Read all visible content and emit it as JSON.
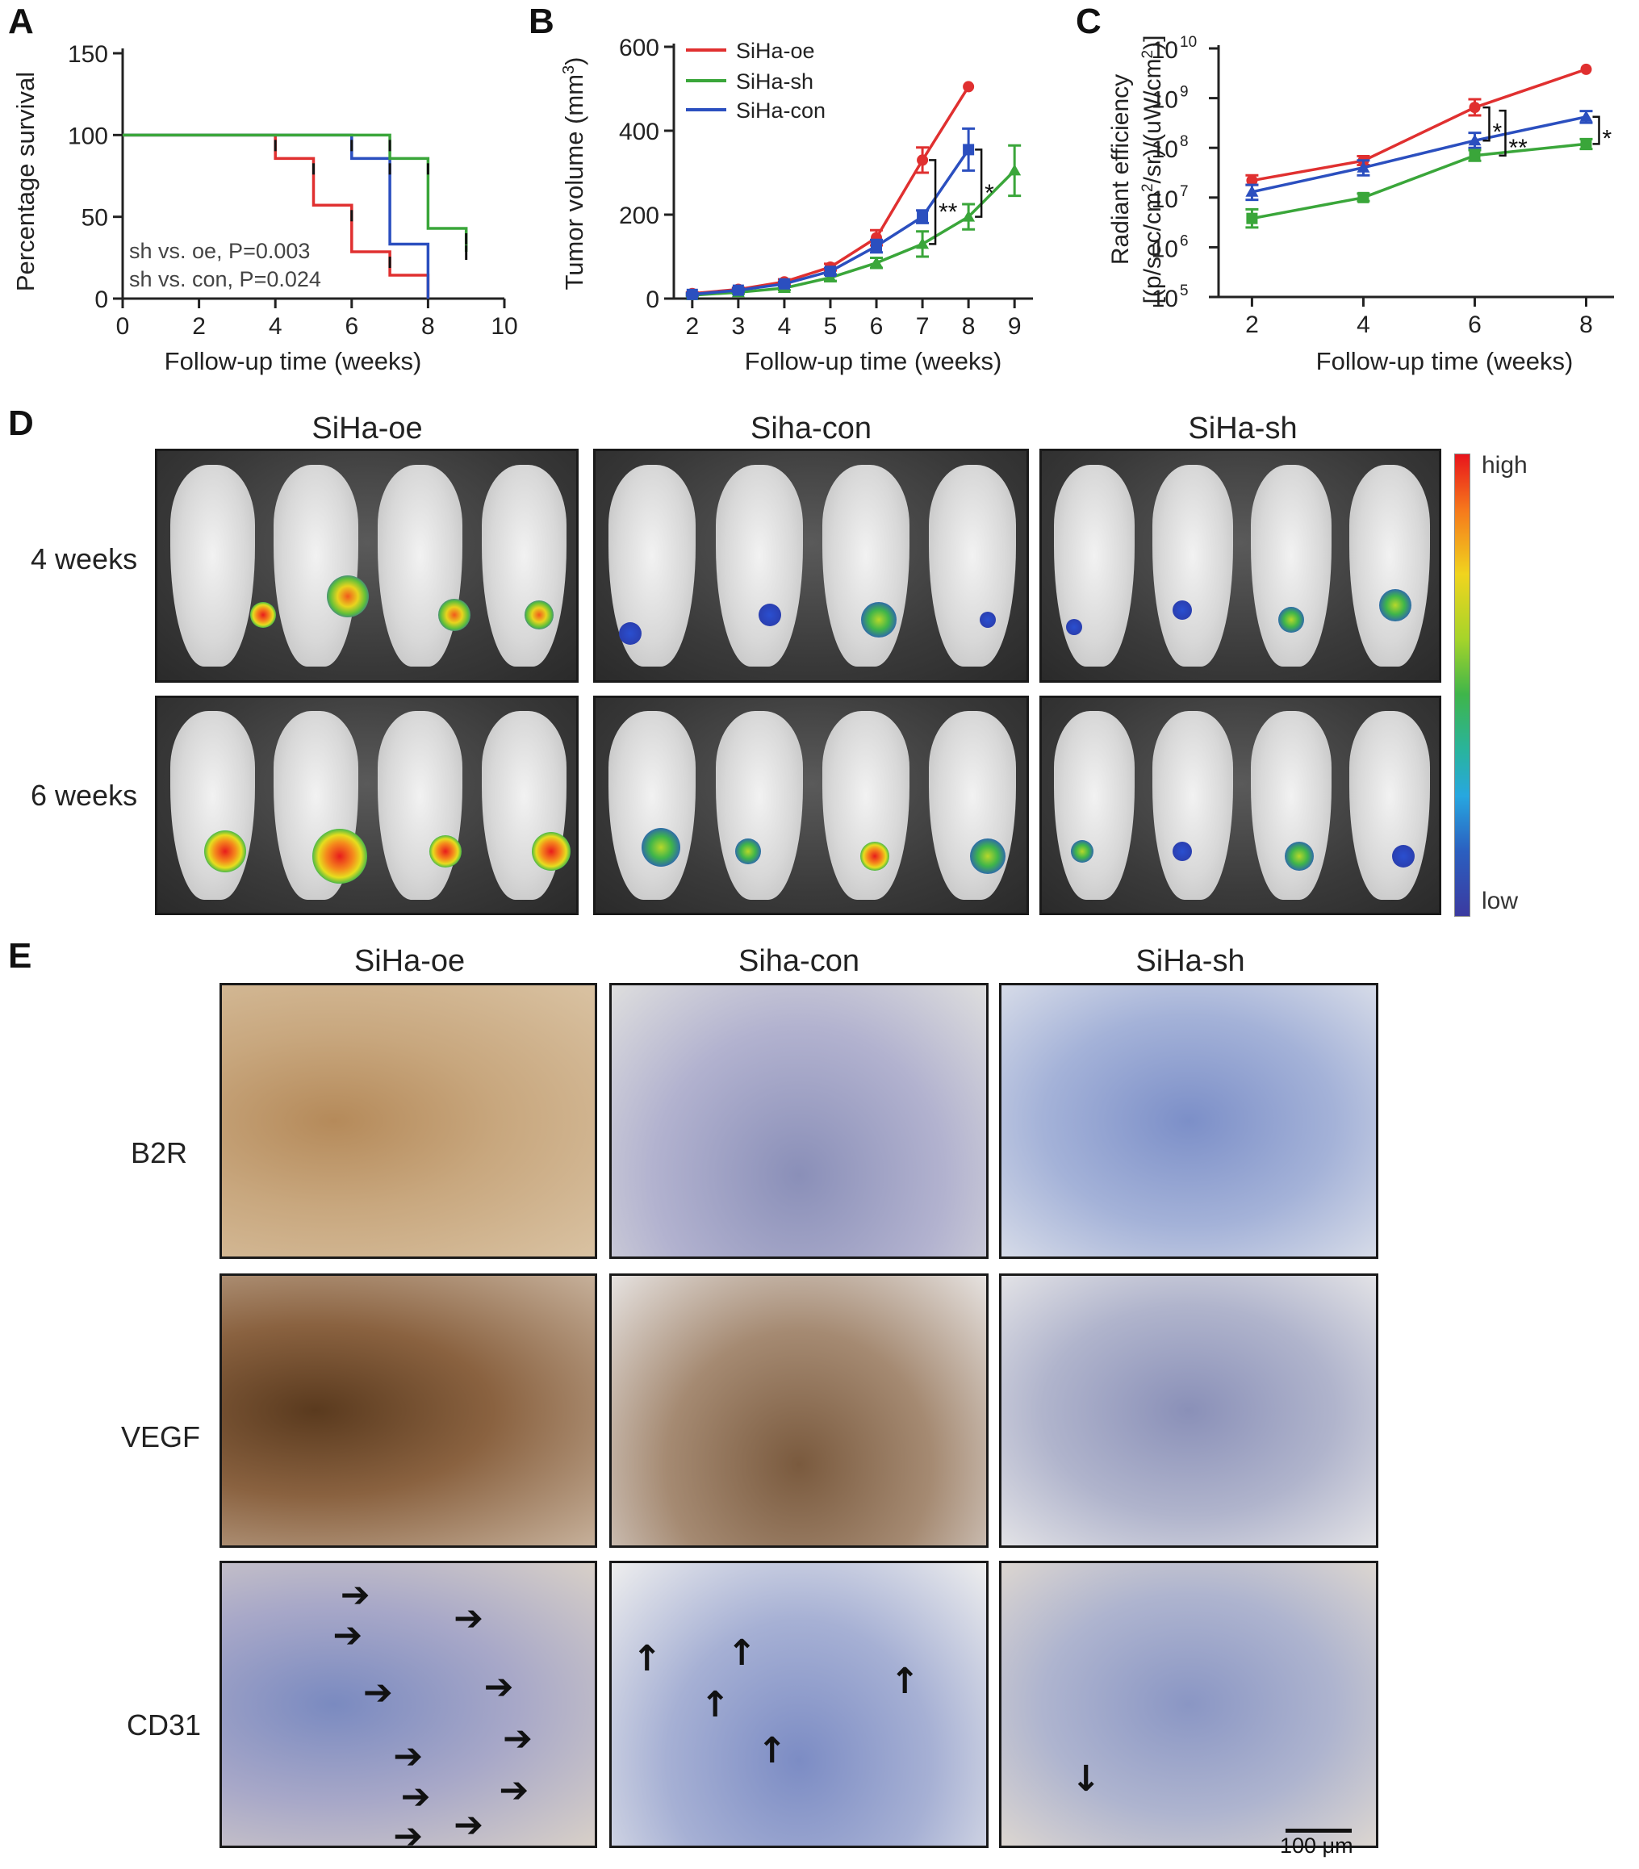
{
  "panels": {
    "A": "A",
    "B": "B",
    "C": "C",
    "D": "D",
    "E": "E"
  },
  "chart_data": [
    {
      "panel": "A",
      "type": "line",
      "title": "",
      "xlabel": "Follow-up time (weeks)",
      "ylabel": "Percentage survival",
      "xlim": [
        0,
        10
      ],
      "ylim": [
        0,
        150
      ],
      "x_ticks": [
        "0",
        "2",
        "4",
        "6",
        "8",
        "10"
      ],
      "y_ticks": [
        "0",
        "50",
        "100",
        "150"
      ],
      "series": [
        {
          "color": "#e03030",
          "x": [
            0,
            4,
            5,
            6,
            7,
            8
          ],
          "y": [
            100,
            85.7,
            57.1,
            28.6,
            14.3,
            0
          ]
        },
        {
          "color": "#2b4fbf",
          "x": [
            0,
            6,
            7,
            8
          ],
          "y": [
            100,
            85.7,
            33.3,
            0
          ]
        },
        {
          "color": "#3aa63a",
          "x": [
            0,
            7,
            8,
            9
          ],
          "y": [
            100,
            85.7,
            42.9,
            28.6
          ]
        }
      ],
      "annotations": [
        "sh vs. oe, P=0.003",
        "sh vs. con, P=0.024"
      ]
    },
    {
      "panel": "B",
      "type": "line",
      "title": "",
      "xlabel": "Follow-up time (weeks)",
      "ylabel": "Tumor  volume (mm3)",
      "ylabel_main": "Tumor  volume (mm",
      "ylabel_sup": "3",
      "ylabel_end": ")",
      "xlim": [
        1.6,
        9.4
      ],
      "ylim": [
        0,
        600
      ],
      "x_ticks": [
        "2",
        "3",
        "4",
        "5",
        "6",
        "7",
        "8",
        "9"
      ],
      "y_ticks": [
        "0",
        "200",
        "400",
        "600"
      ],
      "legend": [
        "SiHa-oe",
        "SiHa-sh",
        "SiHa-con"
      ],
      "series": [
        {
          "name": "SiHa-oe",
          "color": "#e03030",
          "x": [
            2,
            3,
            4,
            5,
            6,
            7,
            8
          ],
          "y": [
            12,
            22,
            40,
            75,
            145,
            330,
            505
          ],
          "err": [
            3,
            4,
            6,
            8,
            18,
            30,
            0
          ]
        },
        {
          "name": "SiHa-sh",
          "color": "#3aa63a",
          "x": [
            2,
            3,
            4,
            5,
            6,
            7,
            8,
            9
          ],
          "y": [
            8,
            15,
            25,
            50,
            85,
            130,
            195,
            305
          ],
          "err": [
            3,
            4,
            5,
            8,
            12,
            30,
            30,
            60
          ]
        },
        {
          "name": "SiHa-con",
          "color": "#2b4fbf",
          "x": [
            2,
            3,
            4,
            5,
            6,
            7,
            8
          ],
          "y": [
            10,
            20,
            35,
            65,
            125,
            195,
            355
          ],
          "err": [
            3,
            4,
            5,
            8,
            15,
            15,
            50
          ]
        }
      ],
      "significance": [
        "**",
        "*"
      ]
    },
    {
      "panel": "C",
      "type": "line",
      "title": "",
      "xlabel": "Follow-up time (weeks)",
      "ylabel": "Radiant efficiency [(p/sec/cm2/sr)/(uW/cm2)]",
      "ylabel_line1": "Radiant efficiency",
      "ylabel_line2a": "[(p/sec/cm",
      "ylabel_sup1": "2",
      "ylabel_line2b": "/sr)/(uW/cm",
      "ylabel_sup2": "2",
      "ylabel_line2c": ")]",
      "yscale": "log",
      "xlim": [
        1.4,
        8.5
      ],
      "ylim": [
        100000,
        10000000000
      ],
      "x_ticks": [
        "2",
        "4",
        "6",
        "8"
      ],
      "y_tick_base": "10",
      "y_tick_exps": [
        "5",
        "6",
        "7",
        "8",
        "9",
        "10"
      ],
      "series": [
        {
          "name": "SiHa-oe",
          "color": "#e03030",
          "x": [
            2,
            4,
            6,
            8
          ],
          "y": [
            22000000,
            55000000,
            650000000,
            3800000000
          ],
          "err_lo": [
            18000000,
            45000000,
            450000000,
            3800000000
          ],
          "err_hi": [
            28000000,
            68000000,
            950000000,
            3800000000
          ]
        },
        {
          "name": "SiHa-con",
          "color": "#2b4fbf",
          "x": [
            2,
            4,
            6,
            8
          ],
          "y": [
            13000000,
            40000000,
            140000000,
            420000000
          ],
          "err_lo": [
            9000000,
            28000000,
            100000000,
            320000000
          ],
          "err_hi": [
            18000000,
            56000000,
            200000000,
            550000000
          ]
        },
        {
          "name": "SiHa-sh",
          "color": "#3aa63a",
          "x": [
            2,
            4,
            6,
            8
          ],
          "y": [
            3800000,
            10000000,
            70000000,
            120000000
          ],
          "err_lo": [
            2500000,
            8500000,
            55000000,
            95000000
          ],
          "err_hi": [
            5800000,
            12000000,
            90000000,
            150000000
          ]
        }
      ],
      "significance": [
        "*",
        "**",
        "*"
      ]
    }
  ],
  "panel_d": {
    "titles": [
      "SiHa-oe",
      "Siha-con",
      "SiHa-sh"
    ],
    "rows": [
      "4 weeks",
      "6 weeks"
    ],
    "colorbar": {
      "high": "high",
      "low": "low"
    }
  },
  "panel_e": {
    "titles": [
      "SiHa-oe",
      "Siha-con",
      "SiHa-sh"
    ],
    "rows": [
      "B2R",
      "VEGF",
      "CD31"
    ],
    "scalebar": "100 μm"
  }
}
